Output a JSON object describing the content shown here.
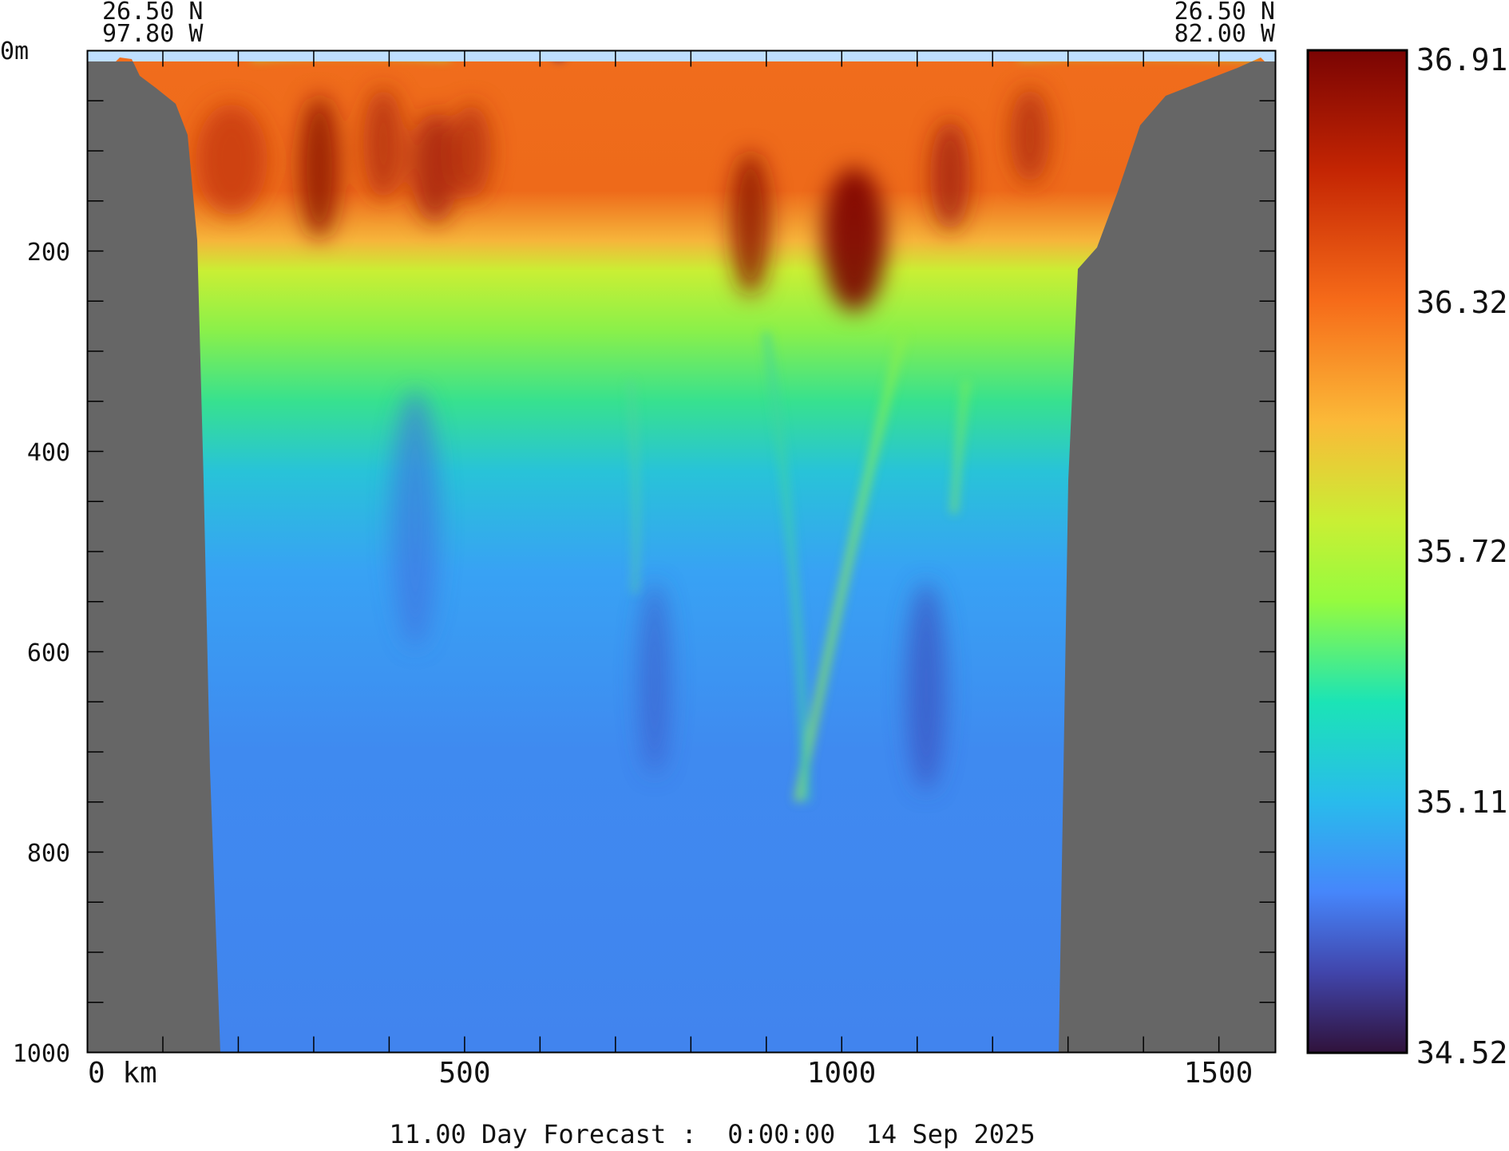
{
  "chart_data": {
    "type": "heatmap",
    "title": "11.00 Day Forecast :  0:00:00  14 Sep 2025",
    "variable_range": [
      34.52,
      36.91
    ],
    "colorbar_ticks": [
      "36.91",
      "36.32",
      "35.72",
      "35.11",
      "34.52"
    ],
    "colorbar_values": [
      36.91,
      36.32,
      35.72,
      35.11,
      34.52
    ],
    "start_point": {
      "lat": "26.50 N",
      "lon": "97.80 W"
    },
    "end_point": {
      "lat": "26.50 N",
      "lon": "82.00 W"
    },
    "xlabel_ticks": [
      "0 km",
      "500",
      "1000",
      "1500"
    ],
    "x_tick_values": [
      0,
      500,
      1000,
      1500
    ],
    "xlim": [
      0,
      1575
    ],
    "x_minor_step": 100,
    "ylabel_ticks": [
      "0m",
      "200",
      "400",
      "600",
      "800",
      "1000"
    ],
    "y_tick_values": [
      0,
      200,
      400,
      600,
      800,
      1000
    ],
    "ylim": [
      1000,
      0
    ],
    "y_minor_step": 50,
    "colors": {
      "land": "#666666",
      "surface_missing": "#bfdfff",
      "high": "#7a0403",
      "low": "#30123b"
    }
  }
}
